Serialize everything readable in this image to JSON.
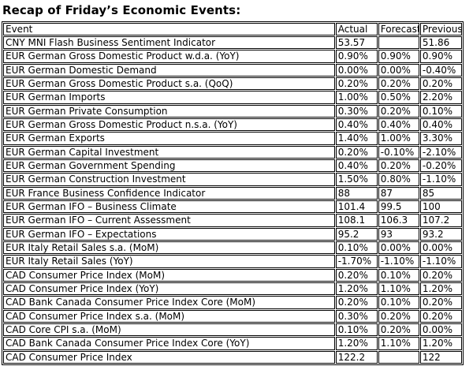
{
  "title": "Recap of Friday’s Economic Events:",
  "colors": {
    "text": "#000000",
    "border": "#000000",
    "background": "#ffffff"
  },
  "chart_data": {
    "type": "table",
    "title": "Recap of Friday’s Economic Events:",
    "columns": [
      "Event",
      "Actual",
      "Forecast",
      "Previous"
    ],
    "rows": [
      [
        "CNY MNI Flash Business Sentiment Indicator",
        "53.57",
        "",
        "51.86"
      ],
      [
        "EUR German Gross Domestic Product w.d.a. (YoY)",
        "0.90%",
        "0.90%",
        "0.90%"
      ],
      [
        "EUR German Domestic Demand",
        "0.00%",
        "0.00%",
        "-0.40%"
      ],
      [
        "EUR German Gross Domestic Product s.a. (QoQ)",
        "0.20%",
        "0.20%",
        "0.20%"
      ],
      [
        "EUR German Imports",
        "1.00%",
        "0.50%",
        "2.20%"
      ],
      [
        "EUR German Private Consumption",
        "0.30%",
        "0.20%",
        "0.10%"
      ],
      [
        "EUR German Gross Domestic Product n.s.a. (YoY)",
        "0.40%",
        "0.40%",
        "0.40%"
      ],
      [
        "EUR German Exports",
        "1.40%",
        "1.00%",
        "3.30%"
      ],
      [
        "EUR German Capital Investment",
        "0.20%",
        "-0.10%",
        "-2.10%"
      ],
      [
        "EUR German Government Spending",
        "0.40%",
        "0.20%",
        "-0.20%"
      ],
      [
        "EUR German Construction Investment",
        "1.50%",
        "0.80%",
        "-1.10%"
      ],
      [
        "EUR France Business Confidence Indicator",
        "88",
        "87",
        "85"
      ],
      [
        "EUR German IFO – Business Climate",
        "101.4",
        "99.5",
        "100"
      ],
      [
        "EUR German IFO – Current Assessment",
        "108.1",
        "106.3",
        "107.2"
      ],
      [
        "EUR German IFO – Expectations",
        "95.2",
        "93",
        "93.2"
      ],
      [
        "EUR Italy Retail Sales s.a. (MoM)",
        "0.10%",
        "0.00%",
        "0.00%"
      ],
      [
        "EUR Italy Retail Sales (YoY)",
        "-1.70%",
        "-1.10%",
        "-1.10%"
      ],
      [
        "CAD Consumer Price Index (MoM)",
        "0.20%",
        "0.10%",
        "0.20%"
      ],
      [
        "CAD Consumer Price Index (YoY)",
        "1.20%",
        "1.10%",
        "1.20%"
      ],
      [
        "CAD Bank Canada Consumer Price Index Core (MoM)",
        "0.20%",
        "0.10%",
        "0.20%"
      ],
      [
        "CAD Consumer Price Index s.a. (MoM)",
        "0.30%",
        "0.20%",
        "0.20%"
      ],
      [
        "CAD Core CPI s.a. (MoM)",
        "0.10%",
        "0.20%",
        "0.00%"
      ],
      [
        "CAD Bank Canada Consumer Price Index Core (YoY)",
        "1.20%",
        "1.10%",
        "1.20%"
      ],
      [
        "CAD Consumer Price Index",
        "122.2",
        "",
        "122"
      ]
    ]
  }
}
